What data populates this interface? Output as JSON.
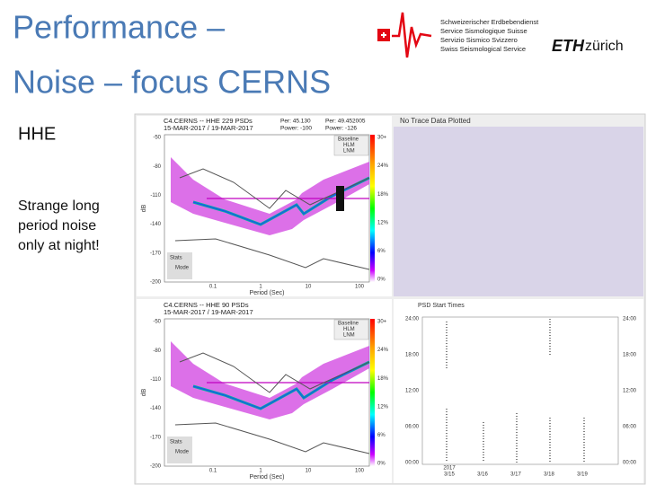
{
  "slide": {
    "title_lines": [
      "Performance –",
      "Noise – focus CERNS"
    ],
    "channel": "HHE",
    "note_lines": [
      "Strange long",
      "period noise",
      "only at night!"
    ]
  },
  "logo": {
    "lines": [
      "Schweizerischer Erdbebendienst",
      "Service Sismologique Suisse",
      "Servizio Sismico Svizzero",
      "Swiss Seismological Service"
    ],
    "eth": "ETH",
    "zurich": "zürich"
  },
  "plots": [
    {
      "title": "C4.CERNS -- HHE  229 PSDs",
      "dates": "15-MAR-2017 / 19-MAR-2017",
      "per_left": "Per: 45.130",
      "power_left": "Power: -100",
      "per_right": "Per: 49.452005",
      "power_right": "Power: -126"
    },
    {
      "title": "C4.CERNS -- HHE  90 PSDs",
      "dates": "15-MAR-2017 / 19-MAR-2017"
    }
  ],
  "psd_axis": {
    "y_label": "dB",
    "x_label": "Period (Sec)",
    "y_ticks": [
      "-50",
      "-80",
      "-110",
      "-140",
      "-170",
      "-200"
    ],
    "x_ticks": [
      "0.1",
      "1",
      "10",
      "100"
    ],
    "colorbar": [
      "30+",
      "24%",
      "18%",
      "12%",
      "6%",
      "0%"
    ],
    "legend": [
      "Baseline",
      "HLM",
      "LNM"
    ],
    "stats": [
      "Stats",
      "Mode"
    ]
  },
  "no_trace": "No Trace Data Plotted",
  "start_times": {
    "title": "PSD Start Times",
    "y_ticks": [
      "24:00",
      "18:00",
      "12:00",
      "06:00",
      "00:00"
    ],
    "x_ticks": [
      "3/15",
      "3/16",
      "3/17",
      "3/18",
      "3/19"
    ],
    "year": "2017"
  }
}
